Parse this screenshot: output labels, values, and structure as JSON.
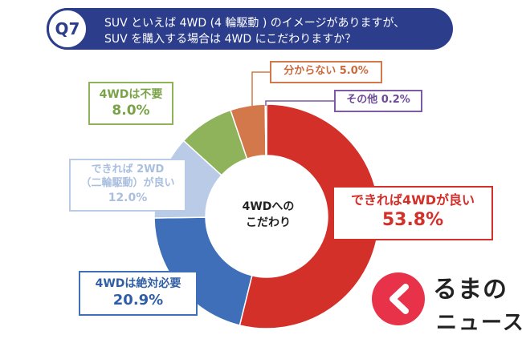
{
  "header": {
    "badge": "Q7",
    "line1": "SUV といえば 4WD (4 輪駆動 ) のイメージがありますが、",
    "line2": "SUV を購入する場合は 4WD にこだわりますか？"
  },
  "center_label": [
    "4WDへの",
    "こだわり"
  ],
  "chart_data": {
    "type": "pie",
    "title": "",
    "slices": [
      {
        "name": "できれば4WDが良い",
        "value": 53.8,
        "label": "53.8%",
        "color": "#d4302a"
      },
      {
        "name": "4WDは絶対必要",
        "value": 20.9,
        "label": "20.9%",
        "color": "#3e6fb8"
      },
      {
        "name": "できれば 2WD （二輪駆動）が良い",
        "value": 12.0,
        "label": "12.0%",
        "color": "#b9cbe6"
      },
      {
        "name": "4WDは不要",
        "value": 8.0,
        "label": "8.0%",
        "color": "#8fb35a"
      },
      {
        "name": "分からない",
        "value": 5.0,
        "label": "5.0%",
        "color": "#d2784a"
      },
      {
        "name": "その他",
        "value": 0.2,
        "label": "0.2%",
        "color": "#7d5aa6"
      }
    ]
  },
  "labels": {
    "prefer4wd": {
      "name": "できれば4WDが良い",
      "pct": "53.8%"
    },
    "must4wd": {
      "name": "4WDは絶対必要",
      "pct": "20.9%"
    },
    "prefer2wd": {
      "name1": "できれば 2WD",
      "name2": "（二輪駆動）が良い",
      "pct": "12.0%"
    },
    "no4wd": {
      "name": "4WDは不要",
      "pct": "8.0%"
    },
    "unknown": {
      "name": "分からない 5.0%"
    },
    "other": {
      "name": "その他 0.2%"
    }
  },
  "logo": {
    "name": "るまの",
    "sub": "ニュース",
    "mark_color": "#e8324a"
  }
}
